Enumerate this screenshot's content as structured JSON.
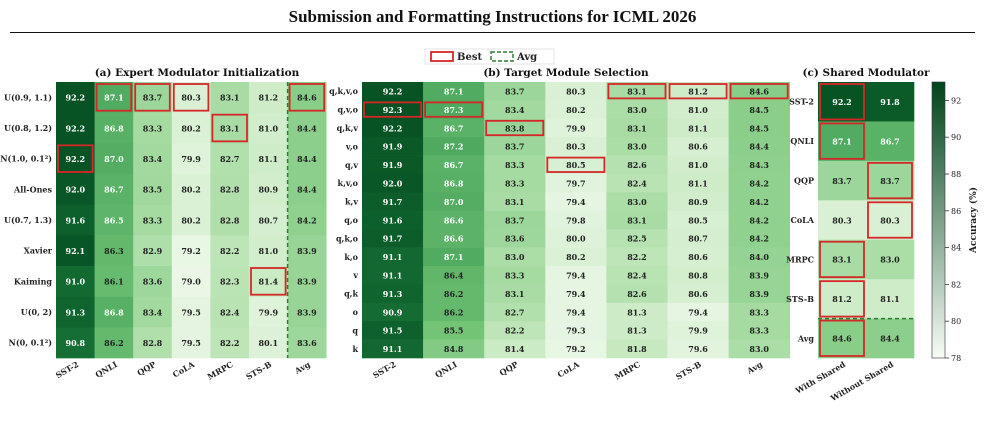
{
  "page": {
    "header_title": "Submission and Formatting Instructions for ICML 2026"
  },
  "legend": {
    "best": "Best",
    "avg": "Avg",
    "best_color": "#d62728",
    "avg_color": "#2e7d32"
  },
  "colorbar": {
    "label": "Accuracy (%)",
    "min": 78,
    "max": 93,
    "ticks": [
      "92",
      "90",
      "88",
      "86",
      "84",
      "82",
      "80",
      "78"
    ]
  },
  "colormap": {
    "low": "#f7fcf5",
    "high": "#00441b"
  },
  "chart_data": [
    {
      "type": "heatmap",
      "title": "(a) Expert Modulator Initialization",
      "rows": [
        "U(0.9, 1.1)",
        "U(0.8, 1.2)",
        "N(1.0, 0.1²)",
        "All-Ones",
        "U(0.7, 1.3)",
        "Xavier",
        "Kaiming",
        "U(0, 2)",
        "N(0, 0.1²)"
      ],
      "columns": [
        "SST-2",
        "QNLI",
        "QQP",
        "CoLA",
        "MRPC",
        "STS-B",
        "Avg"
      ],
      "values": [
        [
          92.2,
          87.1,
          83.7,
          80.3,
          83.1,
          81.2,
          84.6
        ],
        [
          92.2,
          86.8,
          83.3,
          80.2,
          83.1,
          81.0,
          84.4
        ],
        [
          92.2,
          87.0,
          83.4,
          79.9,
          82.7,
          81.1,
          84.4
        ],
        [
          92.0,
          86.7,
          83.5,
          80.2,
          82.8,
          80.9,
          84.4
        ],
        [
          91.6,
          86.5,
          83.3,
          80.2,
          82.8,
          80.7,
          84.2
        ],
        [
          92.1,
          86.3,
          82.9,
          79.2,
          82.2,
          81.0,
          83.9
        ],
        [
          91.0,
          86.1,
          83.6,
          79.0,
          82.3,
          81.4,
          83.9
        ],
        [
          91.3,
          86.8,
          83.4,
          79.5,
          82.4,
          79.9,
          83.9
        ],
        [
          90.8,
          86.2,
          82.8,
          79.5,
          82.2,
          80.1,
          83.6
        ]
      ],
      "best": [
        [
          2,
          0
        ],
        [
          0,
          1
        ],
        [
          0,
          2
        ],
        [
          0,
          3
        ],
        [
          1,
          4
        ],
        [
          6,
          5
        ],
        [
          0,
          6
        ]
      ],
      "avg_highlight": "last-column"
    },
    {
      "type": "heatmap",
      "title": "(b) Target Module Selection",
      "rows": [
        "q,k,v,o",
        "q,v,o",
        "q,k,v",
        "v,o",
        "q,v",
        "k,v,o",
        "k,v",
        "q,o",
        "q,k,o",
        "k,o",
        "v",
        "q,k",
        "o",
        "q",
        "k"
      ],
      "columns": [
        "SST-2",
        "QNLI",
        "QQP",
        "CoLA",
        "MRPC",
        "STS-B",
        "Avg"
      ],
      "values": [
        [
          92.2,
          87.1,
          83.7,
          80.3,
          83.1,
          81.2,
          84.6
        ],
        [
          92.3,
          87.3,
          83.4,
          80.2,
          83.0,
          81.0,
          84.5
        ],
        [
          92.2,
          86.7,
          83.8,
          79.9,
          83.1,
          81.1,
          84.5
        ],
        [
          91.9,
          87.2,
          83.7,
          80.3,
          83.0,
          80.6,
          84.4
        ],
        [
          91.9,
          86.7,
          83.3,
          80.5,
          82.6,
          81.0,
          84.3
        ],
        [
          92.0,
          86.8,
          83.3,
          79.7,
          82.4,
          81.1,
          84.2
        ],
        [
          91.7,
          87.0,
          83.1,
          79.4,
          83.0,
          80.9,
          84.2
        ],
        [
          91.6,
          86.6,
          83.7,
          79.8,
          83.1,
          80.5,
          84.2
        ],
        [
          91.7,
          86.6,
          83.6,
          80.0,
          82.5,
          80.7,
          84.2
        ],
        [
          91.1,
          87.1,
          83.0,
          80.2,
          82.2,
          80.6,
          84.0
        ],
        [
          91.1,
          86.4,
          83.3,
          79.4,
          82.4,
          80.8,
          83.9
        ],
        [
          91.3,
          86.2,
          83.1,
          79.4,
          82.6,
          80.6,
          83.9
        ],
        [
          90.9,
          86.2,
          82.7,
          79.4,
          81.3,
          79.4,
          83.3
        ],
        [
          91.5,
          85.5,
          82.2,
          79.3,
          81.3,
          79.9,
          83.3
        ],
        [
          91.1,
          84.8,
          81.4,
          79.2,
          81.8,
          79.6,
          83.0
        ]
      ],
      "best": [
        [
          1,
          0
        ],
        [
          1,
          1
        ],
        [
          2,
          2
        ],
        [
          4,
          3
        ],
        [
          0,
          4
        ],
        [
          0,
          5
        ],
        [
          0,
          6
        ]
      ],
      "avg_highlight": "none"
    },
    {
      "type": "heatmap",
      "title": "(c) Shared Modulator",
      "rows": [
        "SST-2",
        "QNLI",
        "QQP",
        "CoLA",
        "MRPC",
        "STS-B",
        "Avg"
      ],
      "columns": [
        "With Shared",
        "Without Shared"
      ],
      "values": [
        [
          92.2,
          91.8
        ],
        [
          87.1,
          86.7
        ],
        [
          83.7,
          83.7
        ],
        [
          80.3,
          80.3
        ],
        [
          83.1,
          83.0
        ],
        [
          81.2,
          81.1
        ],
        [
          84.6,
          84.4
        ]
      ],
      "best": [
        [
          0,
          0
        ],
        [
          1,
          0
        ],
        [
          2,
          1
        ],
        [
          3,
          1
        ],
        [
          4,
          0
        ],
        [
          5,
          0
        ],
        [
          6,
          0
        ]
      ],
      "avg_highlight": "last-row"
    }
  ]
}
